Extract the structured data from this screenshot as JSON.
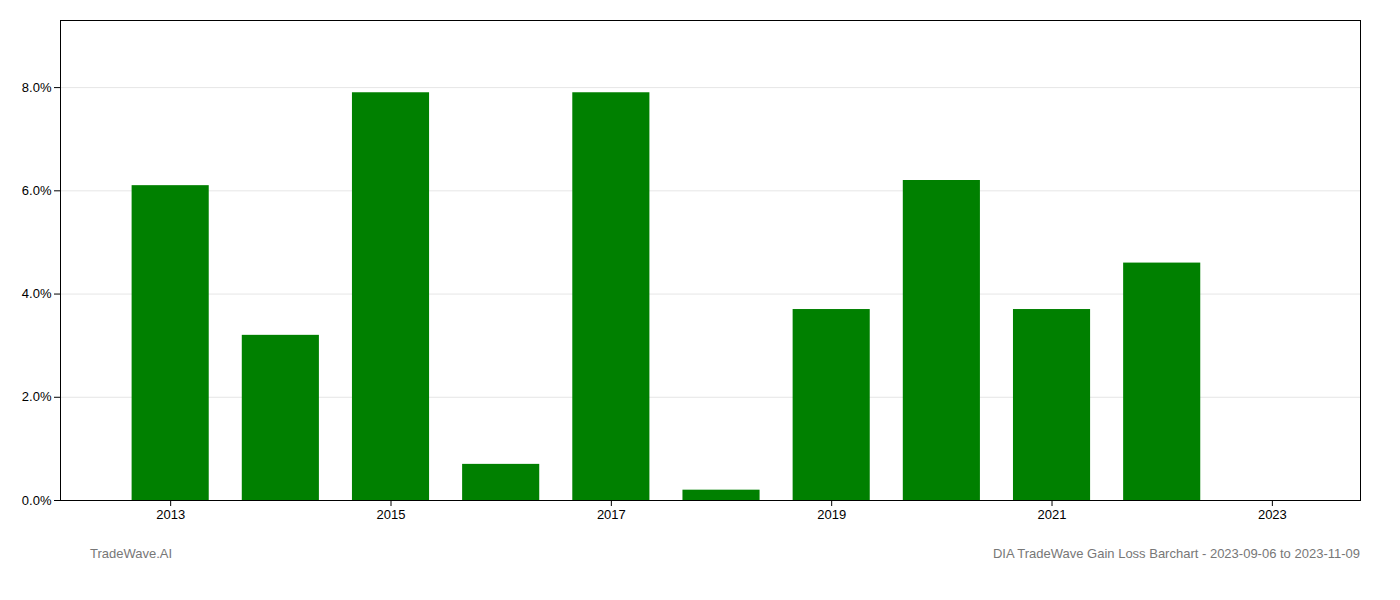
{
  "chart_data": {
    "type": "bar",
    "x": [
      2013,
      2014,
      2015,
      2016,
      2017,
      2018,
      2019,
      2020,
      2021,
      2022,
      2023
    ],
    "values": [
      0.061,
      0.032,
      0.079,
      0.007,
      0.079,
      0.002,
      0.037,
      0.062,
      0.037,
      0.046,
      0.0
    ],
    "color": "#008000",
    "xlim": [
      2012.0,
      2023.8
    ],
    "xticks": [
      2013,
      2015,
      2017,
      2019,
      2021,
      2023
    ],
    "ylim": [
      0,
      0.093
    ],
    "yticks": [
      {
        "value": 0.0,
        "label": "0.0%"
      },
      {
        "value": 0.02,
        "label": "2.0%"
      },
      {
        "value": 0.04,
        "label": "4.0%"
      },
      {
        "value": 0.06,
        "label": "6.0%"
      },
      {
        "value": 0.08,
        "label": "8.0%"
      }
    ],
    "grid": true,
    "annotations": [
      "TradeWave.AI",
      "DIA TradeWave Gain Loss Barchart - 2023-09-06 to 2023-11-09"
    ]
  }
}
